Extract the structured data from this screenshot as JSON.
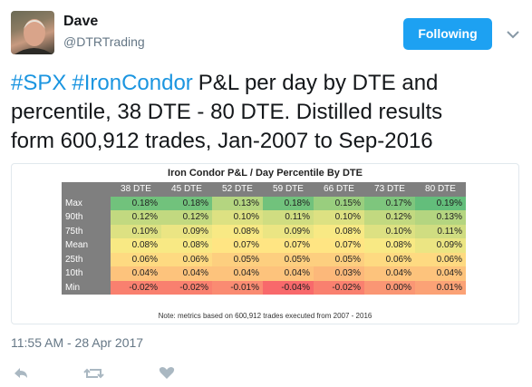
{
  "author": {
    "name": "Dave",
    "handle": "@DTRTrading"
  },
  "follow_button": "Following",
  "text": {
    "lines": [
      [
        {
          "text": "#SPX",
          "hashtag": true
        },
        {
          "text": "#IronCondor",
          "hashtag": true
        },
        {
          "text": "P&L per day by DTE and",
          "hashtag": false
        }
      ],
      [
        {
          "text": "percentile, 38 DTE - 80 DTE. Distilled results",
          "hashtag": false
        }
      ],
      [
        {
          "text": "form 600,912 trades, Jan-2007 to Sep-2016",
          "hashtag": false
        }
      ]
    ]
  },
  "table": {
    "title": "Iron Condor P&L / Day Percentile By DTE",
    "columns": [
      "38 DTE",
      "45 DTE",
      "52 DTE",
      "59 DTE",
      "66 DTE",
      "73 DTE",
      "80 DTE"
    ],
    "rows": [
      {
        "label": "Max",
        "cells": [
          "0.18%",
          "0.18%",
          "0.13%",
          "0.18%",
          "0.15%",
          "0.17%",
          "0.19%"
        ]
      },
      {
        "label": "90th",
        "cells": [
          "0.12%",
          "0.12%",
          "0.10%",
          "0.11%",
          "0.10%",
          "0.12%",
          "0.13%"
        ]
      },
      {
        "label": "75th",
        "cells": [
          "0.10%",
          "0.09%",
          "0.08%",
          "0.09%",
          "0.08%",
          "0.10%",
          "0.11%"
        ]
      },
      {
        "label": "Mean",
        "cells": [
          "0.08%",
          "0.08%",
          "0.07%",
          "0.07%",
          "0.07%",
          "0.08%",
          "0.09%"
        ]
      },
      {
        "label": "25th",
        "cells": [
          "0.06%",
          "0.06%",
          "0.05%",
          "0.05%",
          "0.05%",
          "0.06%",
          "0.06%"
        ]
      },
      {
        "label": "10th",
        "cells": [
          "0.04%",
          "0.04%",
          "0.04%",
          "0.04%",
          "0.03%",
          "0.04%",
          "0.04%"
        ]
      },
      {
        "label": "Min",
        "cells": [
          "-0.02%",
          "-0.02%",
          "-0.01%",
          "-0.04%",
          "-0.02%",
          "0.00%",
          "0.01%"
        ]
      }
    ],
    "note": "Note: metrics based on 600,912 trades executed from 2007 - 2016"
  },
  "timestamp": "11:55 AM - 28 Apr 2017"
}
